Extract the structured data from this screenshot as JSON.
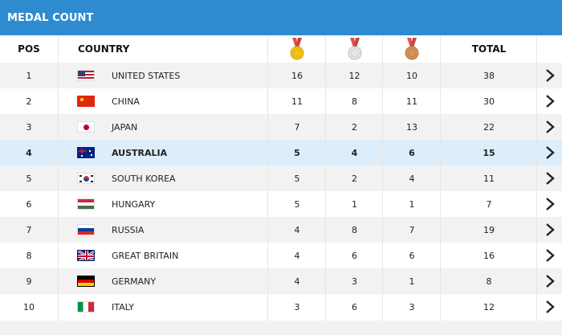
{
  "header": {
    "title": "MEDAL COUNT"
  },
  "columns": {
    "pos": "POS",
    "country": "COUNTRY",
    "total": "TOTAL",
    "gold_icon": "gold-medal-icon",
    "silver_icon": "silver-medal-icon",
    "bronze_icon": "bronze-medal-icon"
  },
  "colors": {
    "header_bg": "#2f8bd0",
    "highlight_row": "#ddeefa",
    "gold": "#f0c419",
    "silver": "#d9d9d9",
    "bronze": "#d4915a",
    "ribbon": "#d9534f"
  },
  "rows": [
    {
      "pos": "1",
      "country": "UNITED STATES",
      "flag": "us-flag-icon",
      "gold": "16",
      "silver": "12",
      "bronze": "10",
      "total": "38"
    },
    {
      "pos": "2",
      "country": "CHINA",
      "flag": "china-flag-icon",
      "gold": "11",
      "silver": "8",
      "bronze": "11",
      "total": "30"
    },
    {
      "pos": "3",
      "country": "JAPAN",
      "flag": "japan-flag-icon",
      "gold": "7",
      "silver": "2",
      "bronze": "13",
      "total": "22"
    },
    {
      "pos": "4",
      "country": "AUSTRALIA",
      "flag": "australia-flag-icon",
      "gold": "5",
      "silver": "4",
      "bronze": "6",
      "total": "15",
      "highlighted": true
    },
    {
      "pos": "5",
      "country": "SOUTH KOREA",
      "flag": "south-korea-flag-icon",
      "gold": "5",
      "silver": "2",
      "bronze": "4",
      "total": "11"
    },
    {
      "pos": "6",
      "country": "HUNGARY",
      "flag": "hungary-flag-icon",
      "gold": "5",
      "silver": "1",
      "bronze": "1",
      "total": "7"
    },
    {
      "pos": "7",
      "country": "RUSSIA",
      "flag": "russia-flag-icon",
      "gold": "4",
      "silver": "8",
      "bronze": "7",
      "total": "19"
    },
    {
      "pos": "8",
      "country": "GREAT BRITAIN",
      "flag": "great-britain-flag-icon",
      "gold": "4",
      "silver": "6",
      "bronze": "6",
      "total": "16"
    },
    {
      "pos": "9",
      "country": "GERMANY",
      "flag": "germany-flag-icon",
      "gold": "4",
      "silver": "3",
      "bronze": "1",
      "total": "8"
    },
    {
      "pos": "10",
      "country": "ITALY",
      "flag": "italy-flag-icon",
      "gold": "3",
      "silver": "6",
      "bronze": "3",
      "total": "12"
    }
  ]
}
